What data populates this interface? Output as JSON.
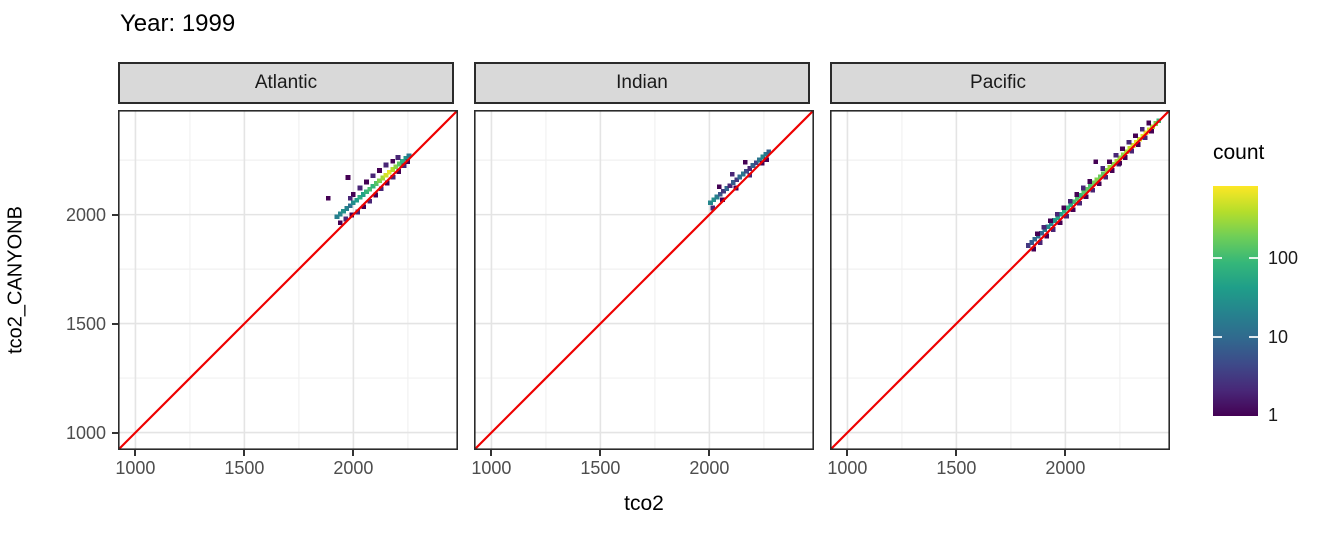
{
  "title": "Year: 1999",
  "axes": {
    "x_label": "tco2",
    "y_label": "tco2_CANYONB",
    "domain": [
      920,
      2480
    ],
    "major_ticks": [
      1000,
      1500,
      2000
    ],
    "minor_ticks": [
      1250,
      1750,
      2250
    ],
    "tick_labels": [
      "1000",
      "1500",
      "2000"
    ]
  },
  "legend": {
    "title": "count",
    "tick_values": [
      100,
      10,
      1
    ],
    "tick_labels": [
      "100",
      "10",
      "1"
    ],
    "max_count": 810,
    "scale": "log10"
  },
  "colors": {
    "identity_line": "#ee0000",
    "strip_bg": "#d9d9d9",
    "panel_border": "#2b2b2b",
    "grid_major": "#e4e4e4",
    "grid_minor": "#f1f1f1",
    "tick_label": "#4d4d4d",
    "text": "#000000",
    "viridis": [
      "#440154",
      "#482878",
      "#3e4989",
      "#31688e",
      "#26828e",
      "#1f9e89",
      "#35b779",
      "#6ece58",
      "#b5de2b",
      "#fde725"
    ]
  },
  "chart_data": {
    "type": "heatmap",
    "subtype": "geom_bin2d_faceted",
    "title": "Year: 1999",
    "xlabel": "tco2",
    "ylabel": "tco2_CANYONB",
    "xlim": [
      920,
      2480
    ],
    "ylim": [
      920,
      2480
    ],
    "grid": true,
    "identity_line": true,
    "count_scale": "log10",
    "legend_position": "right",
    "panels": [
      {
        "name": "Atlantic",
        "bins": [
          [
            1925,
            1990,
            18
          ],
          [
            1940,
            2003,
            22
          ],
          [
            1955,
            2015,
            30
          ],
          [
            1970,
            2028,
            20
          ],
          [
            1985,
            2041,
            12
          ],
          [
            2000,
            2054,
            25
          ],
          [
            2015,
            2066,
            40
          ],
          [
            2030,
            2079,
            60
          ],
          [
            2045,
            2092,
            45
          ],
          [
            2060,
            2105,
            80
          ],
          [
            2075,
            2117,
            110
          ],
          [
            2090,
            2130,
            80
          ],
          [
            2105,
            2143,
            130
          ],
          [
            2120,
            2156,
            220
          ],
          [
            2135,
            2168,
            320
          ],
          [
            2150,
            2181,
            520
          ],
          [
            2165,
            2194,
            650
          ],
          [
            2180,
            2207,
            380
          ],
          [
            2195,
            2219,
            240
          ],
          [
            2210,
            2232,
            140
          ],
          [
            2225,
            2245,
            70
          ],
          [
            2240,
            2258,
            35
          ],
          [
            2255,
            2270,
            15
          ],
          [
            2000,
            2092,
            1
          ],
          [
            2030,
            2122,
            2
          ],
          [
            2060,
            2150,
            1
          ],
          [
            2090,
            2178,
            2
          ],
          [
            2120,
            2202,
            1
          ],
          [
            2150,
            2228,
            2
          ],
          [
            2180,
            2245,
            1
          ],
          [
            2205,
            2262,
            2
          ],
          [
            1985,
            2075,
            2
          ],
          [
            1940,
            1962,
            1
          ],
          [
            1965,
            1980,
            2
          ],
          [
            1992,
            1998,
            1
          ],
          [
            2020,
            2012,
            2
          ],
          [
            2048,
            2036,
            1
          ],
          [
            2075,
            2062,
            2
          ],
          [
            2102,
            2090,
            1
          ],
          [
            2128,
            2118,
            2
          ],
          [
            2155,
            2145,
            1
          ],
          [
            2182,
            2172,
            2
          ],
          [
            2208,
            2198,
            1
          ],
          [
            2232,
            2224,
            2
          ],
          [
            2250,
            2242,
            1
          ],
          [
            1885,
            2075,
            1
          ],
          [
            1975,
            2170,
            1
          ]
        ]
      },
      {
        "name": "Indian",
        "bins": [
          [
            2005,
            2055,
            22
          ],
          [
            2020,
            2068,
            28
          ],
          [
            2035,
            2081,
            18
          ],
          [
            2050,
            2094,
            6
          ],
          [
            2065,
            2107,
            3
          ],
          [
            2080,
            2120,
            9
          ],
          [
            2095,
            2133,
            2
          ],
          [
            2110,
            2147,
            7
          ],
          [
            2125,
            2160,
            3
          ],
          [
            2140,
            2173,
            10
          ],
          [
            2155,
            2186,
            14
          ],
          [
            2170,
            2199,
            5
          ],
          [
            2185,
            2212,
            2
          ],
          [
            2200,
            2225,
            8
          ],
          [
            2215,
            2238,
            4
          ],
          [
            2230,
            2251,
            14
          ],
          [
            2245,
            2264,
            22
          ],
          [
            2260,
            2277,
            16
          ],
          [
            2272,
            2288,
            8
          ],
          [
            2045,
            2128,
            1
          ],
          [
            2105,
            2185,
            2
          ],
          [
            2165,
            2240,
            1
          ],
          [
            2015,
            2030,
            2
          ],
          [
            2060,
            2068,
            1
          ],
          [
            2122,
            2122,
            1
          ],
          [
            2185,
            2180,
            2
          ],
          [
            2242,
            2235,
            1
          ],
          [
            2262,
            2252,
            1
          ]
        ]
      },
      {
        "name": "Pacific",
        "bins": [
          [
            1830,
            1858,
            3
          ],
          [
            1845,
            1872,
            6
          ],
          [
            1860,
            1887,
            9
          ],
          [
            1875,
            1901,
            12
          ],
          [
            1890,
            1915,
            8
          ],
          [
            1905,
            1930,
            16
          ],
          [
            1920,
            1944,
            26
          ],
          [
            1935,
            1958,
            20
          ],
          [
            1950,
            1973,
            36
          ],
          [
            1965,
            1987,
            52
          ],
          [
            1980,
            2001,
            40
          ],
          [
            1995,
            2016,
            62
          ],
          [
            2010,
            2030,
            85
          ],
          [
            2025,
            2045,
            60
          ],
          [
            2040,
            2059,
            105
          ],
          [
            2055,
            2073,
            125
          ],
          [
            2070,
            2088,
            90
          ],
          [
            2085,
            2102,
            135
          ],
          [
            2100,
            2116,
            155
          ],
          [
            2115,
            2131,
            120
          ],
          [
            2130,
            2145,
            185
          ],
          [
            2145,
            2159,
            225
          ],
          [
            2160,
            2174,
            180
          ],
          [
            2175,
            2188,
            150
          ],
          [
            2190,
            2202,
            260
          ],
          [
            2205,
            2217,
            310
          ],
          [
            2220,
            2231,
            255
          ],
          [
            2235,
            2245,
            355
          ],
          [
            2250,
            2260,
            305
          ],
          [
            2265,
            2274,
            255
          ],
          [
            2280,
            2288,
            360
          ],
          [
            2295,
            2303,
            455
          ],
          [
            2310,
            2317,
            555
          ],
          [
            2325,
            2331,
            650
          ],
          [
            2340,
            2346,
            510
          ],
          [
            2355,
            2360,
            610
          ],
          [
            2370,
            2375,
            700
          ],
          [
            2385,
            2389,
            560
          ],
          [
            2400,
            2403,
            360
          ],
          [
            2415,
            2418,
            210
          ],
          [
            2428,
            2430,
            90
          ],
          [
            1855,
            1842,
            1
          ],
          [
            1885,
            1872,
            2
          ],
          [
            1915,
            1902,
            1
          ],
          [
            1945,
            1932,
            2
          ],
          [
            1975,
            1962,
            1
          ],
          [
            2005,
            1992,
            2
          ],
          [
            2035,
            2022,
            1
          ],
          [
            2065,
            2052,
            2
          ],
          [
            2095,
            2082,
            1
          ],
          [
            2125,
            2112,
            2
          ],
          [
            2155,
            2142,
            1
          ],
          [
            2185,
            2172,
            2
          ],
          [
            2215,
            2202,
            1
          ],
          [
            2245,
            2232,
            2
          ],
          [
            2275,
            2262,
            1
          ],
          [
            2305,
            2292,
            2
          ],
          [
            2335,
            2322,
            1
          ],
          [
            2365,
            2352,
            2
          ],
          [
            2395,
            2382,
            1
          ],
          [
            1872,
            1912,
            1
          ],
          [
            1902,
            1942,
            2
          ],
          [
            1932,
            1972,
            1
          ],
          [
            1962,
            2002,
            2
          ],
          [
            1992,
            2032,
            1
          ],
          [
            2022,
            2062,
            2
          ],
          [
            2052,
            2092,
            1
          ],
          [
            2082,
            2122,
            2
          ],
          [
            2112,
            2152,
            1
          ],
          [
            2172,
            2212,
            2
          ],
          [
            2202,
            2242,
            1
          ],
          [
            2232,
            2272,
            2
          ],
          [
            2262,
            2302,
            1
          ],
          [
            2292,
            2332,
            2
          ],
          [
            2322,
            2362,
            1
          ],
          [
            2352,
            2392,
            2
          ],
          [
            2382,
            2420,
            1
          ],
          [
            2140,
            2242,
            1
          ],
          [
            2250,
            2236,
            1
          ]
        ]
      }
    ]
  },
  "layout_note": "3 facet panels sharing axes, red y=x reference line, viridis log-count fill"
}
